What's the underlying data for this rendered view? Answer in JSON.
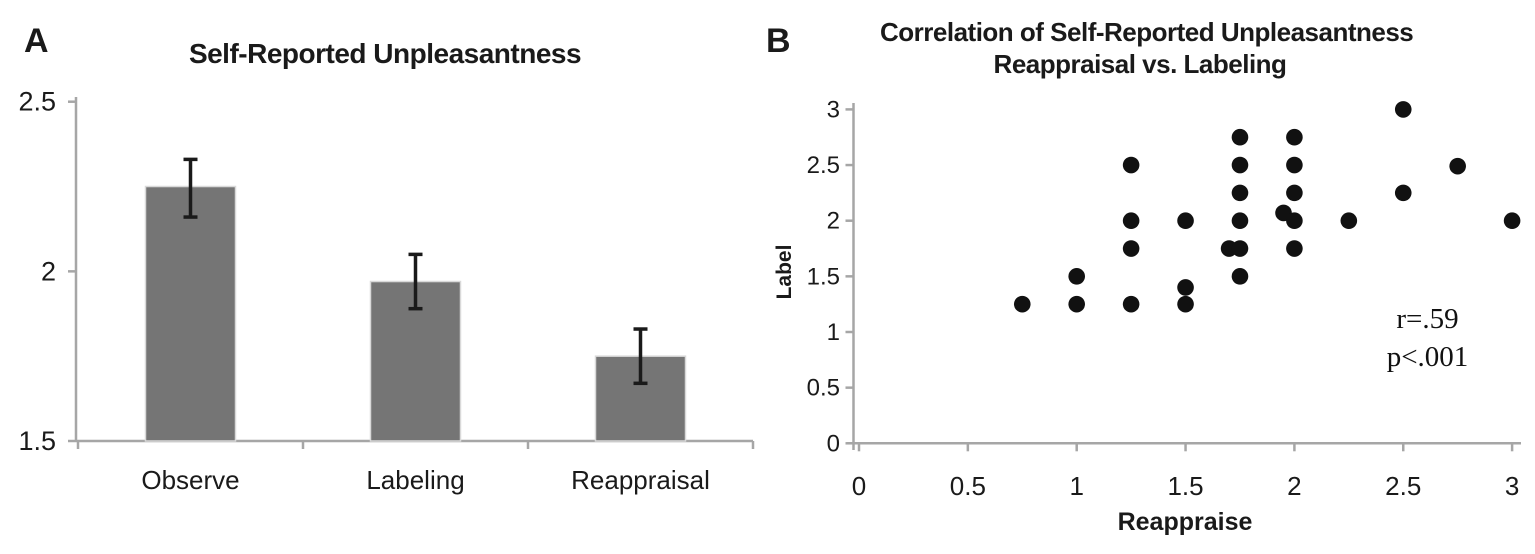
{
  "style": {
    "background": "#ffffff",
    "text_color": "#1a1a1a",
    "axis_color": "#a6a6a6",
    "bar_fill": "#757575",
    "bar_edge": "#d9d9d9",
    "errorbar_color": "#1a1a1a",
    "point_color": "#111111"
  },
  "panels": [
    {
      "label": "A"
    },
    {
      "label": "B"
    }
  ],
  "chart_data": [
    {
      "type": "bar",
      "title": "Self-Reported Unpleasantness",
      "categories": [
        "Observe",
        "Labeling",
        "Reappraisal"
      ],
      "values": [
        2.25,
        1.97,
        1.75
      ],
      "error_low": [
        2.16,
        1.89,
        1.67
      ],
      "error_high": [
        2.33,
        2.05,
        1.83
      ],
      "ylim": [
        1.5,
        2.5
      ],
      "yticks": [
        1.5,
        2,
        2.5
      ],
      "xlabel": "",
      "ylabel": "",
      "grid": false,
      "legend": false
    },
    {
      "type": "scatter",
      "title_line1": "Correlation of Self-Reported Unpleasantness",
      "title_line2": "Reappraisal vs. Labeling",
      "xlabel": "Reappraise",
      "ylabel": "Label",
      "xlim": [
        0,
        3
      ],
      "ylim": [
        0,
        3
      ],
      "xticks": [
        0,
        0.5,
        1,
        1.5,
        2,
        2.5,
        3
      ],
      "yticks": [
        0,
        0.5,
        1,
        1.5,
        2,
        2.5,
        3
      ],
      "points": [
        [
          0.75,
          1.25
        ],
        [
          1,
          1.25
        ],
        [
          1,
          1.5
        ],
        [
          1.25,
          1.25
        ],
        [
          1.25,
          1.75
        ],
        [
          1.25,
          2
        ],
        [
          1.25,
          2.5
        ],
        [
          1.5,
          1.25
        ],
        [
          1.5,
          1.4
        ],
        [
          1.5,
          2
        ],
        [
          1.7,
          1.75
        ],
        [
          1.75,
          1.5
        ],
        [
          1.75,
          1.75
        ],
        [
          1.75,
          2
        ],
        [
          1.75,
          2.25
        ],
        [
          1.75,
          2.5
        ],
        [
          1.75,
          2.75
        ],
        [
          1.95,
          2.07
        ],
        [
          2,
          1.75
        ],
        [
          2,
          2
        ],
        [
          2,
          2.25
        ],
        [
          2,
          2.5
        ],
        [
          2,
          2.75
        ],
        [
          2.25,
          2
        ],
        [
          2.5,
          2.25
        ],
        [
          2.5,
          3
        ],
        [
          2.75,
          2.49
        ],
        [
          3,
          2
        ]
      ],
      "annotation": {
        "r_text": "r=.59",
        "p_text": "p<.001"
      },
      "grid": false,
      "legend": false
    }
  ]
}
